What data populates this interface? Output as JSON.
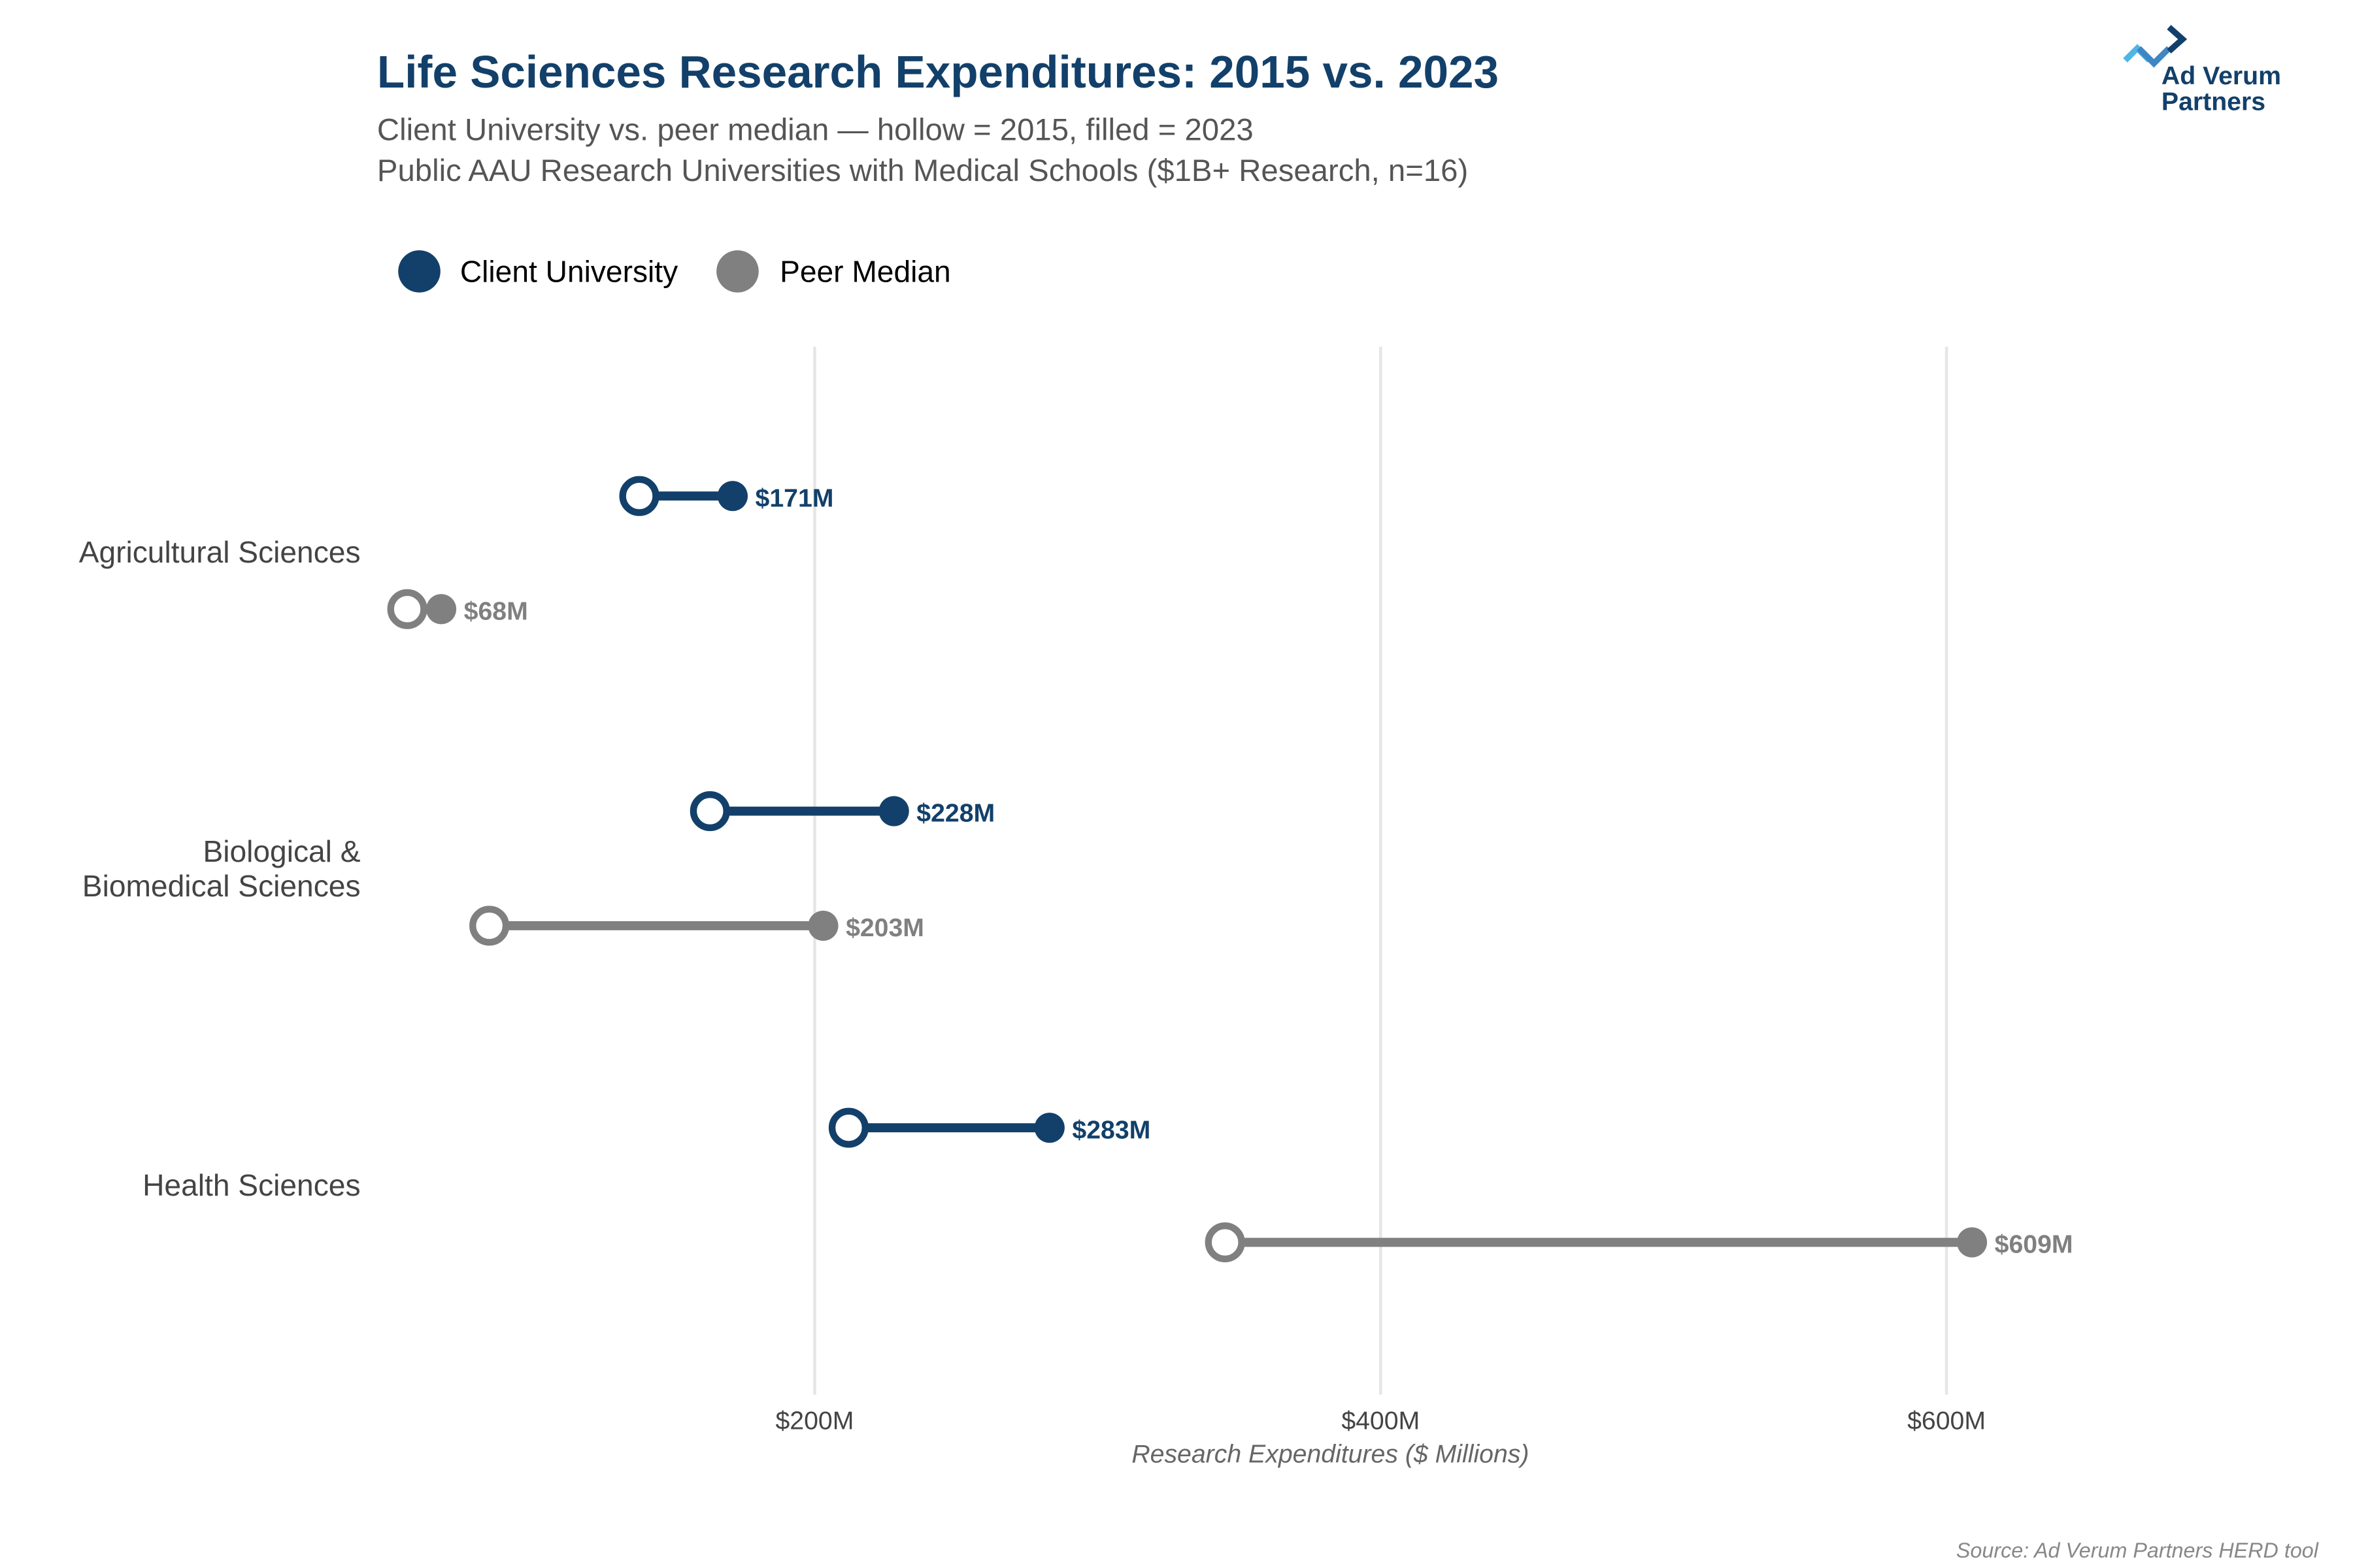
{
  "header": {
    "title": "Life Sciences Research Expenditures: 2015 vs. 2023",
    "subtitle_1": "Client University vs. peer median — hollow = 2015, filled = 2023",
    "subtitle_2": "Public AAU Research Universities with Medical Schools ($1B+ Research, n=16)"
  },
  "logo": {
    "line1": "Ad Verum",
    "line2": "Partners"
  },
  "source": "Source: Ad Verum Partners HERD tool",
  "colors": {
    "client": "#12406a",
    "peer": "#808080",
    "title": "#12406a",
    "grid": "#e6e6e6"
  },
  "chart_data": {
    "type": "dumbbell",
    "title": "Life Sciences Research Expenditures: 2015 vs. 2023",
    "xlabel": "Research Expenditures ($ Millions)",
    "xlim": [
      48,
      733
    ],
    "xticks": [
      200,
      400,
      600
    ],
    "xtick_labels": [
      "$200M",
      "$400M",
      "$600M"
    ],
    "grid": "vertical",
    "legend_position": "top-left",
    "categories": [
      "Agricultural Sciences",
      "Biological & Biomedical Sciences",
      "Health Sciences"
    ],
    "category_lines": [
      [
        "Agricultural Sciences"
      ],
      [
        "Biological &",
        "Biomedical Sciences"
      ],
      [
        "Health Sciences"
      ]
    ],
    "series": [
      {
        "name": "Client University",
        "color": "#12406a",
        "values_2015": [
          138,
          163,
          212
        ],
        "values_2023": [
          171,
          228,
          283
        ],
        "labels": [
          "$171M",
          "$228M",
          "$283M"
        ]
      },
      {
        "name": "Peer Median",
        "color": "#808080",
        "values_2015": [
          56,
          85,
          345
        ],
        "values_2023": [
          68,
          203,
          609
        ],
        "labels": [
          "$68M",
          "$203M",
          "$609M"
        ]
      }
    ]
  }
}
